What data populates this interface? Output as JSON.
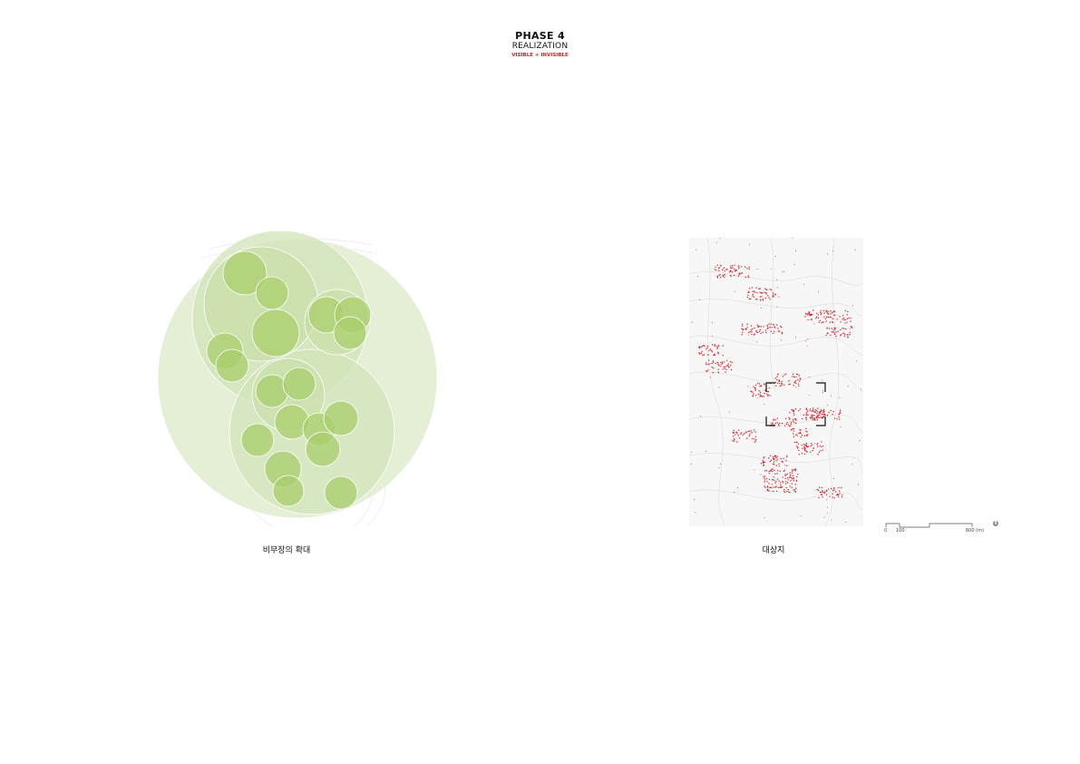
{
  "header": {
    "phase": "PHASE 4",
    "title": "REALIZATION",
    "subtitle": "VISIBLE + INVISIBLE"
  },
  "colors": {
    "accent_red": "#d92127",
    "green_light": "#dbe9c6",
    "green_mid": "#c3da9e",
    "green_dark": "#9cc861",
    "contour": "#cfcfcf"
  },
  "left_panel": {
    "caption": "비무장의 확대",
    "icon": "nested-green-circles-diagram"
  },
  "right_panel": {
    "caption": "대상지",
    "icon": "site-plan-with-red-points",
    "scale": {
      "ticks": [
        "0",
        "100",
        "600 (m)"
      ]
    },
    "north_icon": "north-arrow-icon"
  }
}
